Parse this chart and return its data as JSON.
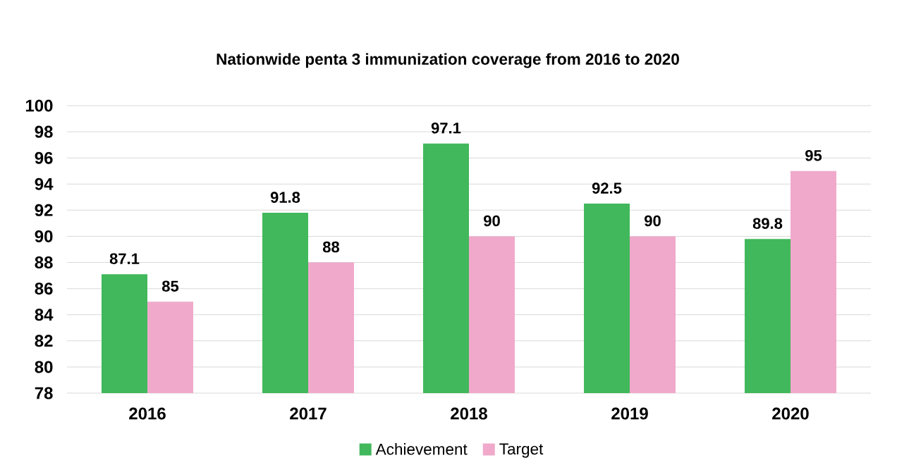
{
  "chart_data": {
    "type": "bar",
    "title": "Nationwide penta 3 immunization coverage from 2016 to 2020",
    "categories": [
      "2016",
      "2017",
      "2018",
      "2019",
      "2020"
    ],
    "series": [
      {
        "name": "Achievement",
        "color": "#41b85b",
        "values": [
          87.1,
          91.8,
          97.1,
          92.5,
          89.8
        ]
      },
      {
        "name": "Target",
        "color": "#f0a9cb",
        "values": [
          85,
          88,
          90,
          90,
          95
        ]
      }
    ],
    "ylim": [
      78,
      100
    ],
    "yticks": [
      78,
      80,
      82,
      84,
      86,
      88,
      90,
      92,
      94,
      96,
      98,
      100
    ],
    "grid": "y",
    "legend": "bottom",
    "data_labels": true
  }
}
